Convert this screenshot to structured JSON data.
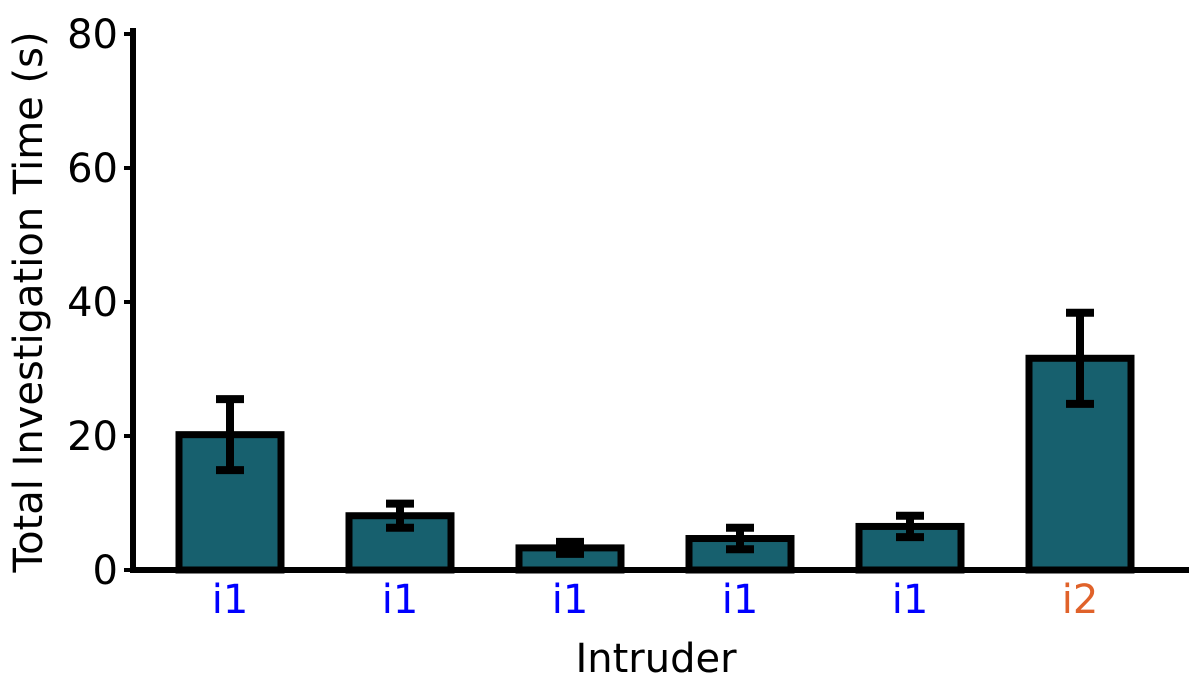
{
  "chart_data": {
    "type": "bar",
    "xlabel": "Intruder",
    "ylabel": "Total Investigation Time (s)",
    "ylim": [
      0,
      80
    ],
    "yticks": [
      "0",
      "20",
      "40",
      "60",
      "80"
    ],
    "categories": [
      "i1",
      "i1",
      "i1",
      "i1",
      "i1",
      "i2"
    ],
    "category_colors": [
      "#0000ff",
      "#0000ff",
      "#0000ff",
      "#0000ff",
      "#0000ff",
      "#e0622a"
    ],
    "values": [
      20.2,
      8.1,
      3.3,
      4.7,
      6.5,
      31.6
    ],
    "errors": [
      5.3,
      1.8,
      0.9,
      1.6,
      1.6,
      6.8
    ],
    "bar_color": "#17606e",
    "edge_color": "#000000",
    "grid": false
  }
}
